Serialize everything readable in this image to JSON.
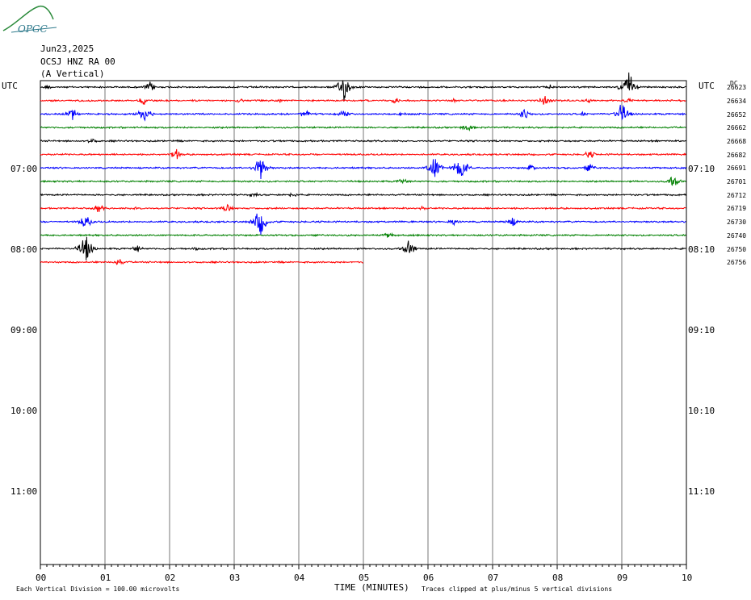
{
  "logo": {
    "text": "OPGC",
    "color": "#2f7a8c"
  },
  "header": {
    "date": "Jun23,2025",
    "station": "OCSJ HNZ RA 00",
    "component": "(A Vertical)"
  },
  "utc_left": "UTC",
  "utc_right": "UTC",
  "dc_label": "DC",
  "left_hours": [
    "07:00",
    "08:00",
    "09:00",
    "10:00",
    "11:00"
  ],
  "right_hours": [
    "07:10",
    "08:10",
    "09:10",
    "10:10",
    "11:10"
  ],
  "footer": {
    "vertical_division": "Each Vertical Division =  100.00 microvolts",
    "xlabel": "TIME (MINUTES)",
    "clip_note": "Traces clipped at plus/minus 5 vertical divisions"
  },
  "chart_data": {
    "type": "line",
    "xlabel": "TIME (MINUTES)",
    "x_ticks": [
      "00",
      "01",
      "02",
      "03",
      "04",
      "05",
      "06",
      "07",
      "08",
      "09",
      "10"
    ],
    "xlim": [
      0,
      10
    ],
    "grid": true,
    "colors": [
      "#000000",
      "#ff0000",
      "#0000ff",
      "#008000"
    ],
    "trace_dc": [
      "26623",
      "26634",
      "26652",
      "26662",
      "26668",
      "26682",
      "26691",
      "26701",
      "26712",
      "26719",
      "26730",
      "26740",
      "26750",
      "26756"
    ],
    "traces": [
      {
        "color": "#000000",
        "end_min": 10,
        "bursts": [
          [
            0.1,
            0.8
          ],
          [
            1.7,
            1.8
          ],
          [
            4.7,
            5.2
          ],
          [
            7.9,
            0.9
          ],
          [
            9.1,
            6.0
          ]
        ]
      },
      {
        "color": "#ff0000",
        "end_min": 10,
        "bursts": [
          [
            1.6,
            1.5
          ],
          [
            3.1,
            1.0
          ],
          [
            3.7,
            0.8
          ],
          [
            5.5,
            1.1
          ],
          [
            6.4,
            0.8
          ],
          [
            7.8,
            1.8
          ],
          [
            8.5,
            0.8
          ],
          [
            9.1,
            1.0
          ]
        ]
      },
      {
        "color": "#0000ff",
        "end_min": 10,
        "bursts": [
          [
            0.5,
            2.2
          ],
          [
            1.6,
            3.5
          ],
          [
            4.1,
            1.5
          ],
          [
            4.7,
            1.4
          ],
          [
            5.6,
            0.8
          ],
          [
            7.5,
            2.0
          ],
          [
            8.4,
            0.8
          ],
          [
            9.0,
            4.0
          ]
        ]
      },
      {
        "color": "#008000",
        "end_min": 10,
        "bursts": [
          [
            6.6,
            1.6
          ]
        ]
      },
      {
        "color": "#000000",
        "end_min": 10,
        "bursts": [
          [
            0.8,
            1.2
          ]
        ]
      },
      {
        "color": "#ff0000",
        "end_min": 10,
        "bursts": [
          [
            2.1,
            2.0
          ],
          [
            8.5,
            1.5
          ]
        ]
      },
      {
        "color": "#0000ff",
        "end_min": 10,
        "bursts": [
          [
            3.4,
            5.0
          ],
          [
            6.1,
            5.0
          ],
          [
            6.5,
            5.0
          ],
          [
            7.6,
            1.5
          ],
          [
            8.5,
            1.5
          ]
        ]
      },
      {
        "color": "#008000",
        "end_min": 10,
        "bursts": [
          [
            5.6,
            1.2
          ],
          [
            9.8,
            2.5
          ]
        ]
      },
      {
        "color": "#000000",
        "end_min": 10,
        "bursts": [
          [
            3.3,
            1.0
          ],
          [
            3.9,
            1.0
          ]
        ]
      },
      {
        "color": "#ff0000",
        "end_min": 10,
        "bursts": [
          [
            0.9,
            1.5
          ],
          [
            1.5,
            0.8
          ],
          [
            2.9,
            1.5
          ],
          [
            5.9,
            0.8
          ]
        ]
      },
      {
        "color": "#0000ff",
        "end_min": 10,
        "bursts": [
          [
            0.7,
            2.5
          ],
          [
            3.4,
            5.0
          ],
          [
            6.4,
            1.4
          ],
          [
            7.3,
            2.0
          ]
        ]
      },
      {
        "color": "#008000",
        "end_min": 10,
        "bursts": [
          [
            5.4,
            1.3
          ]
        ]
      },
      {
        "color": "#000000",
        "end_min": 10,
        "bursts": [
          [
            0.7,
            5.0
          ],
          [
            1.5,
            1.2
          ],
          [
            5.7,
            3.0
          ],
          [
            2.4,
            0.6
          ]
        ]
      },
      {
        "color": "#ff0000",
        "end_min": 5.0,
        "bursts": [
          [
            1.2,
            1.6
          ]
        ]
      }
    ]
  }
}
